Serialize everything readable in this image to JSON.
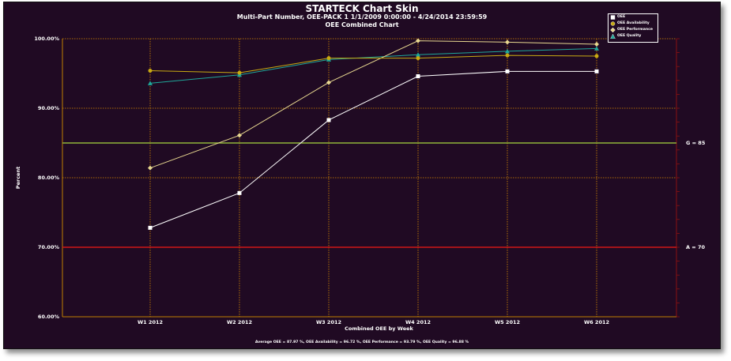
{
  "chart_data": {
    "type": "line",
    "title": "STARTECK Chart Skin",
    "subtitle": "Multi-Part Number, OEE-PACK 1    1/1/2009 0:00:00 - 4/24/2014 23:59:59",
    "chart_name": "OEE Combined Chart",
    "xlabel": "Combined OEE by Week",
    "ylabel": "Percent",
    "categories": [
      "W1 2012",
      "W2 2012",
      "W3 2012",
      "W4 2012",
      "W5 2012",
      "W6 2012"
    ],
    "ylim": [
      60,
      100
    ],
    "ytick_values": [
      60,
      70,
      80,
      90,
      100
    ],
    "ytick_labels": [
      "60.00%",
      "70.00%",
      "80.00%",
      "90.00%",
      "100.00%"
    ],
    "grid": true,
    "legend_position": "top-right",
    "series": [
      {
        "name": "OEE",
        "marker": "square",
        "color": "#FFFFFF",
        "values": [
          72.8,
          77.8,
          88.3,
          94.6,
          95.3,
          95.3
        ]
      },
      {
        "name": "OEE Availability",
        "marker": "circle",
        "color": "#C8AA12",
        "values": [
          95.4,
          95.1,
          97.2,
          97.2,
          97.6,
          97.5
        ]
      },
      {
        "name": "OEE Performance",
        "marker": "diamond",
        "color": "#E8D890",
        "values": [
          81.4,
          86.1,
          93.7,
          99.7,
          99.5,
          99.2
        ]
      },
      {
        "name": "OEE Quality",
        "marker": "triangle",
        "color": "#1FA89A",
        "values": [
          93.6,
          94.8,
          97.0,
          97.7,
          98.2,
          98.6
        ]
      }
    ],
    "reference_lines": [
      {
        "label": "G = 85",
        "value": 85,
        "color": "#8FB53A"
      },
      {
        "label": "A = 70",
        "value": 70,
        "color": "#D01616"
      }
    ],
    "footer": "Average OEE = 87.97 %, OEE Availability = 96.72 %, OEE Performance = 93.79 %, OEE Quality = 96.88 %"
  },
  "colors": {
    "background": "#200A23",
    "grid": "#D98C00",
    "axis_left": "#C08000",
    "axis_right": "#8A1010",
    "text": "#FFFFFF"
  }
}
